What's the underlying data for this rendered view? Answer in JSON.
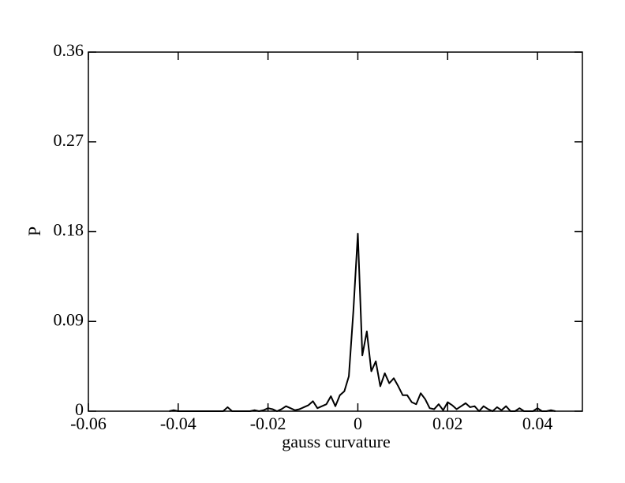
{
  "chart_data": {
    "type": "line",
    "xlabel": "gauss curvature",
    "ylabel": "P",
    "x": [
      -0.042,
      -0.041,
      -0.04,
      -0.039,
      -0.038,
      -0.037,
      -0.036,
      -0.035,
      -0.034,
      -0.033,
      -0.032,
      -0.031,
      -0.03,
      -0.029,
      -0.028,
      -0.027,
      -0.026,
      -0.025,
      -0.024,
      -0.023,
      -0.022,
      -0.021,
      -0.02,
      -0.019,
      -0.018,
      -0.017,
      -0.016,
      -0.015,
      -0.014,
      -0.013,
      -0.012,
      -0.011,
      -0.01,
      -0.009,
      -0.008,
      -0.007,
      -0.006,
      -0.005,
      -0.004,
      -0.003,
      -0.002,
      -0.001,
      0.0,
      0.001,
      0.002,
      0.003,
      0.004,
      0.005,
      0.006,
      0.007,
      0.008,
      0.009,
      0.01,
      0.011,
      0.012,
      0.013,
      0.014,
      0.015,
      0.016,
      0.017,
      0.018,
      0.019,
      0.02,
      0.021,
      0.022,
      0.023,
      0.024,
      0.025,
      0.026,
      0.027,
      0.028,
      0.029,
      0.03,
      0.031,
      0.032,
      0.033,
      0.034,
      0.035,
      0.036,
      0.037,
      0.038,
      0.039,
      0.04,
      0.041,
      0.042,
      0.043,
      0.044
    ],
    "values": [
      0,
      0.001,
      0,
      0,
      0,
      0,
      0,
      0,
      0,
      0,
      0,
      0,
      0,
      0.004,
      0,
      0,
      0,
      0,
      0,
      0.001,
      0,
      0.001,
      0.003,
      0.002,
      0,
      0.002,
      0.005,
      0.003,
      0.001,
      0.002,
      0.004,
      0.006,
      0.01,
      0.003,
      0.005,
      0.007,
      0.015,
      0.005,
      0.016,
      0.02,
      0.035,
      0.1,
      0.178,
      0.056,
      0.08,
      0.04,
      0.05,
      0.025,
      0.038,
      0.028,
      0.033,
      0.025,
      0.016,
      0.016,
      0.009,
      0.007,
      0.018,
      0.012,
      0.003,
      0.002,
      0.007,
      0.001,
      0.009,
      0.006,
      0.002,
      0.005,
      0.008,
      0.004,
      0.005,
      0,
      0.005,
      0.002,
      0,
      0.004,
      0.001,
      0.005,
      0,
      0,
      0.003,
      0,
      0,
      0,
      0.003,
      0,
      0,
      0.001,
      0
    ],
    "color": "#000000",
    "xlim": [
      -0.06,
      0.05
    ],
    "xticks": [
      -0.06,
      -0.04,
      -0.02,
      0,
      0.02,
      0.04
    ],
    "ylim": [
      0,
      0.36
    ],
    "yticks": [
      0,
      0.09,
      0.18,
      0.27,
      0.36
    ],
    "grid": false
  }
}
